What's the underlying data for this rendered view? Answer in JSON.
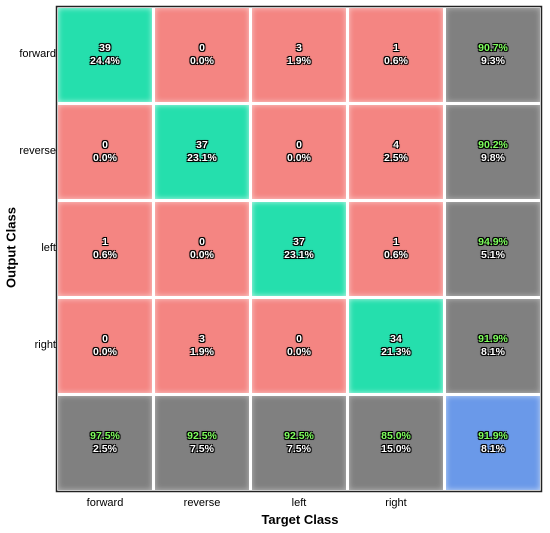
{
  "chart_data": {
    "type": "heatmap",
    "xlabel": "Target Class",
    "ylabel": "Output Class",
    "categories": [
      "forward",
      "reverse",
      "left",
      "right"
    ],
    "matrix": [
      [
        {
          "count": "39",
          "pct": "24.4%"
        },
        {
          "count": "0",
          "pct": "0.0%"
        },
        {
          "count": "3",
          "pct": "1.9%"
        },
        {
          "count": "1",
          "pct": "0.6%"
        }
      ],
      [
        {
          "count": "0",
          "pct": "0.0%"
        },
        {
          "count": "37",
          "pct": "23.1%"
        },
        {
          "count": "0",
          "pct": "0.0%"
        },
        {
          "count": "4",
          "pct": "2.5%"
        }
      ],
      [
        {
          "count": "1",
          "pct": "0.6%"
        },
        {
          "count": "0",
          "pct": "0.0%"
        },
        {
          "count": "37",
          "pct": "23.1%"
        },
        {
          "count": "1",
          "pct": "0.6%"
        }
      ],
      [
        {
          "count": "0",
          "pct": "0.0%"
        },
        {
          "count": "3",
          "pct": "1.9%"
        },
        {
          "count": "0",
          "pct": "0.0%"
        },
        {
          "count": "34",
          "pct": "21.3%"
        }
      ]
    ],
    "row_summary": [
      {
        "correct": "90.7%",
        "wrong": "9.3%"
      },
      {
        "correct": "90.2%",
        "wrong": "9.8%"
      },
      {
        "correct": "94.9%",
        "wrong": "5.1%"
      },
      {
        "correct": "91.9%",
        "wrong": "8.1%"
      }
    ],
    "col_summary": [
      {
        "correct": "97.5%",
        "wrong": "2.5%"
      },
      {
        "correct": "92.5%",
        "wrong": "7.5%"
      },
      {
        "correct": "92.5%",
        "wrong": "7.5%"
      },
      {
        "correct": "85.0%",
        "wrong": "15.0%"
      }
    ],
    "overall": {
      "correct": "91.9%",
      "wrong": "8.1%"
    }
  },
  "colors": {
    "diagonal": "#25dfad",
    "off_diagonal": "#f48582",
    "summary": "#808080",
    "overall": "#6a99e9",
    "correct_text": "#7dff5c"
  }
}
